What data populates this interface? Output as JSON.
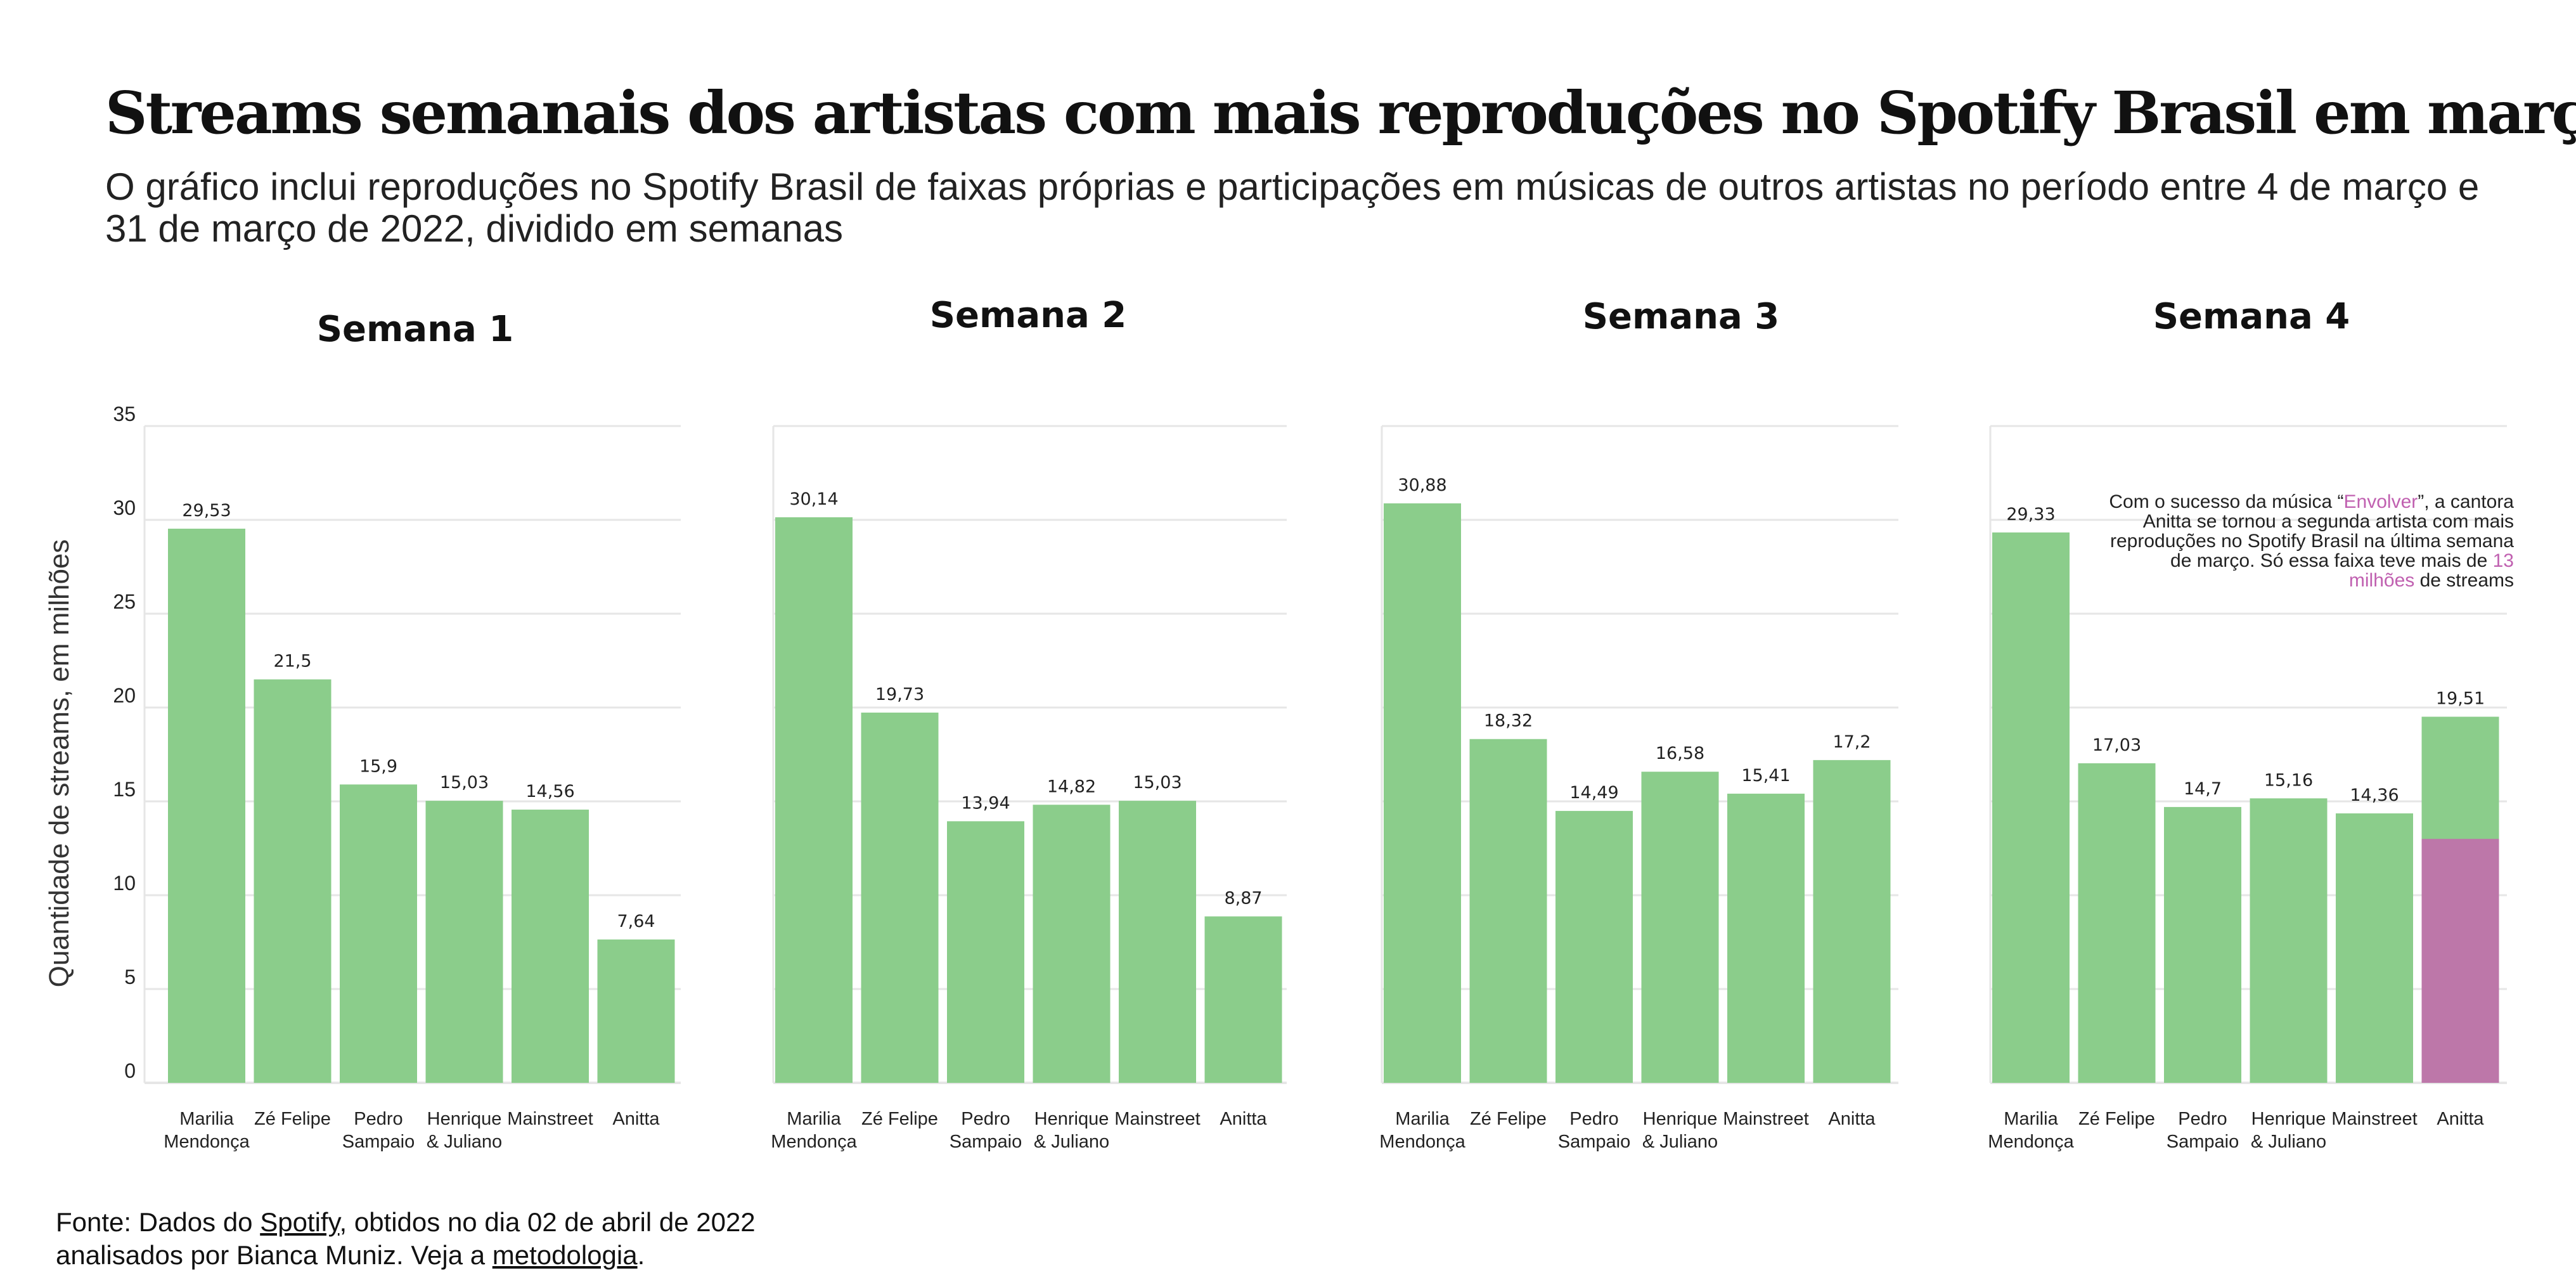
{
  "title": "Streams semanais dos artistas com mais reproduções no Spotify Brasil em março",
  "subtitle": "O gráfico inclui reproduções no Spotify Brasil de faixas próprias e participações em músicas de outros artistas no período entre 4 de março e 31 de março de 2022, dividido em semanas",
  "footer": {
    "line1_prefix": "Fonte: Dados do ",
    "line1_link": "Spotify",
    "line1_suffix": ", obtidos no dia 02 de abril de 2022",
    "line2_prefix": "analisados por Bianca Muniz. Veja a ",
    "line2_link": "metodologia",
    "line2_suffix": "."
  },
  "annotation": {
    "part1": "Com o sucesso da música “",
    "highlight1": "Envolver",
    "part2": "”, a cantora Anitta se tornou a segunda artista com mais reproduções no Spotify Brasil na última semana de março. Só essa faixa teve mais de ",
    "highlight2": "13 milhões",
    "part3": " de streams"
  },
  "colors": {
    "bar": "#8bcd8b",
    "highlight": "#bd77a9",
    "accent_text": "#c060b0",
    "grid": "#e6e6e6"
  },
  "chart_data": {
    "type": "bar",
    "ylabel": "Quantidade de streams, em milhões",
    "ylim": [
      0,
      35
    ],
    "yticks": [
      0,
      5,
      10,
      15,
      20,
      25,
      30,
      35
    ],
    "grid": true,
    "panels": [
      {
        "title": "Semana 1",
        "categories": [
          "Marilia Mendonça",
          "Zé Felipe",
          "Pedro Sampaio",
          "Henrique & Juliano",
          "Mainstreet",
          "Anitta"
        ],
        "values": [
          29.53,
          21.5,
          15.9,
          15.03,
          14.56,
          7.64
        ],
        "value_labels": [
          "29,53",
          "21,5",
          "15,9",
          "15,03",
          "14,56",
          "7,64"
        ]
      },
      {
        "title": "Semana 2",
        "categories": [
          "Marilia Mendonça",
          "Zé Felipe",
          "Pedro Sampaio",
          "Henrique & Juliano",
          "Mainstreet",
          "Anitta"
        ],
        "values": [
          30.14,
          19.73,
          13.94,
          14.82,
          15.03,
          8.87
        ],
        "value_labels": [
          "30,14",
          "19,73",
          "13,94",
          "14,82",
          "15,03",
          "8,87"
        ]
      },
      {
        "title": "Semana 3",
        "categories": [
          "Marilia Mendonça",
          "Zé Felipe",
          "Pedro Sampaio",
          "Henrique & Juliano",
          "Mainstreet",
          "Anitta"
        ],
        "values": [
          30.88,
          18.32,
          14.49,
          16.58,
          15.41,
          17.2
        ],
        "value_labels": [
          "30,88",
          "18,32",
          "14,49",
          "16,58",
          "15,41",
          "17,2"
        ]
      },
      {
        "title": "Semana 4",
        "categories": [
          "Marilia Mendonça",
          "Zé Felipe",
          "Pedro Sampaio",
          "Henrique & Juliano",
          "Mainstreet",
          "Anitta"
        ],
        "values": [
          29.33,
          17.03,
          14.7,
          15.16,
          14.36,
          19.51
        ],
        "value_labels": [
          "29,33",
          "17,03",
          "14,7",
          "15,16",
          "14,36",
          "19,51"
        ],
        "highlight": {
          "category": "Anitta",
          "value": 13
        }
      }
    ]
  }
}
